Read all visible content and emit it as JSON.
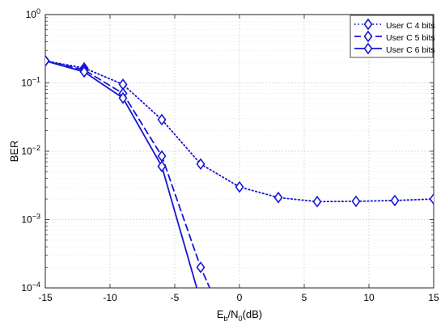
{
  "chart_data": {
    "type": "line",
    "xlabel": {
      "main": "E",
      "sub": "b",
      "mid": "/N",
      "sub2": "0",
      "tail": "(dB)"
    },
    "ylabel": "BER",
    "xlim": [
      -15,
      15
    ],
    "ylim_log10": [
      -4,
      0
    ],
    "yscale": "log",
    "grid": true,
    "legend_position": "top-right",
    "x_ticks": [
      -15,
      -10,
      -5,
      0,
      5,
      10,
      15
    ],
    "y_ticks_exp": [
      0,
      -1,
      -2,
      -3,
      -4
    ],
    "y_tick_base": "10",
    "line_color": "#1515d6",
    "series": [
      {
        "name": "User C 4 bits",
        "style": "dotted",
        "x": [
          -15,
          -12,
          -9,
          -6,
          -3,
          0,
          3,
          6,
          9,
          12,
          15
        ],
        "y": [
          0.21,
          0.165,
          0.095,
          0.029,
          0.0065,
          0.003,
          0.0021,
          0.00183,
          0.00185,
          0.0019,
          0.002
        ]
      },
      {
        "name": "User C 5 bits",
        "style": "dashed",
        "x": [
          -15,
          -12,
          -9,
          -6,
          -3,
          -2.3
        ],
        "y": [
          0.21,
          0.155,
          0.07,
          0.0085,
          0.0002,
          0.0001
        ]
      },
      {
        "name": "User C 6 bits",
        "style": "solid",
        "x": [
          -15,
          -12,
          -9,
          -6,
          -3.3
        ],
        "y": [
          0.21,
          0.145,
          0.06,
          0.006,
          0.0001
        ]
      }
    ]
  }
}
